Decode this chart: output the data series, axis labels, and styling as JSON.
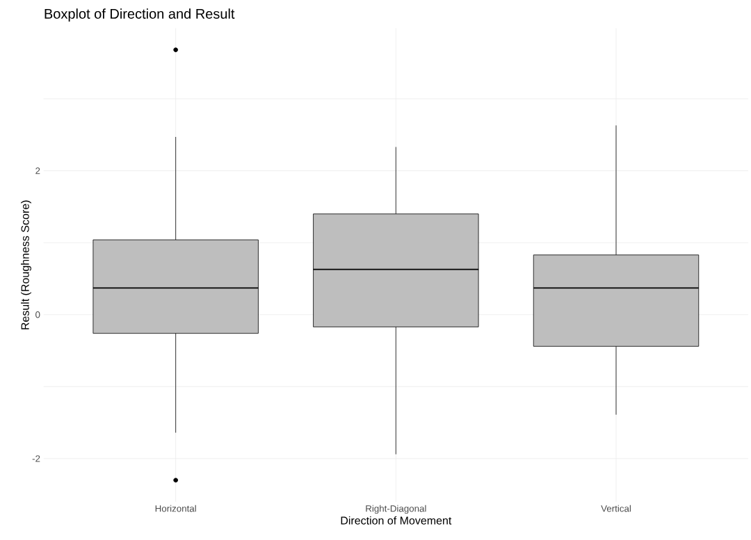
{
  "chart_data": {
    "type": "box",
    "title": "Boxplot of Direction and Result",
    "xlabel": "Direction of Movement",
    "ylabel": "Result (Roughness Score)",
    "categories": [
      "Horizontal",
      "Right-Diagonal",
      "Vertical"
    ],
    "boxes": [
      {
        "low": -1.64,
        "q1": -0.26,
        "median": 0.37,
        "q3": 1.04,
        "high": 2.47,
        "outliers": [
          3.68,
          -2.3
        ]
      },
      {
        "low": -1.94,
        "q1": -0.17,
        "median": 0.63,
        "q3": 1.4,
        "high": 2.33
      },
      {
        "low": -1.39,
        "q1": -0.44,
        "median": 0.37,
        "q3": 0.83,
        "high": 2.63
      }
    ],
    "color": "#bebebe",
    "ylim": [
      -2.6,
      3.98
    ],
    "yticks": [
      -2,
      {
        "value": -1,
        "label": null
      },
      0,
      {
        "value": 1,
        "label": null
      },
      2,
      {
        "value": 3,
        "label": null
      }
    ],
    "grid": true
  }
}
